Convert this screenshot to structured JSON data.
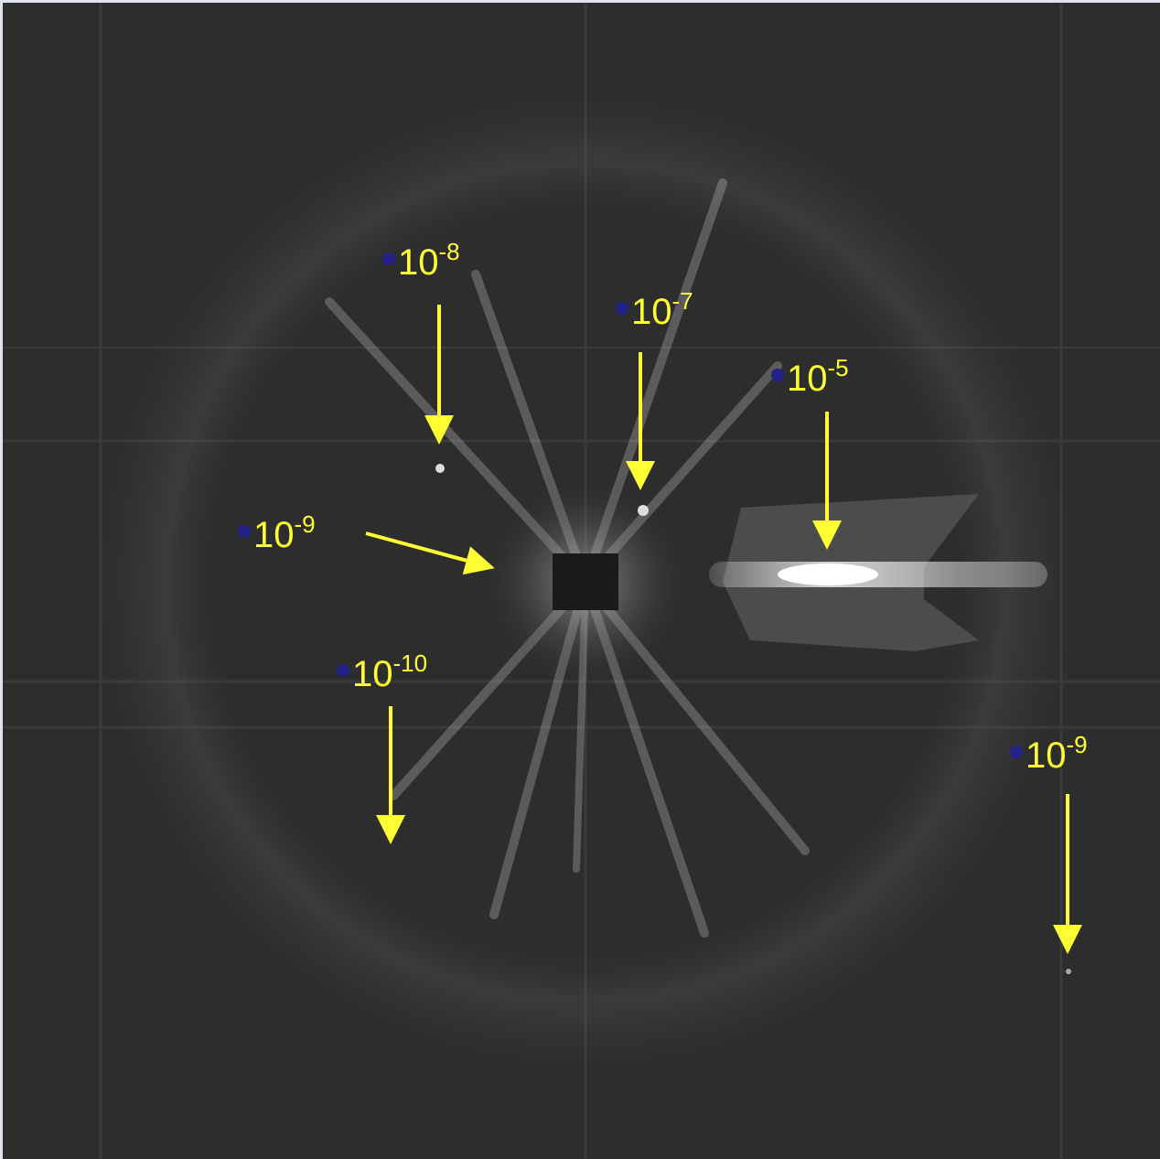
{
  "annotations": [
    {
      "base": "10",
      "exponent": "-8"
    },
    {
      "base": "10",
      "exponent": "-7"
    },
    {
      "base": "10",
      "exponent": "-5"
    },
    {
      "base": "10",
      "exponent": "-9"
    },
    {
      "base": "10",
      "exponent": "-10"
    },
    {
      "base": "10",
      "exponent": "-9"
    }
  ]
}
